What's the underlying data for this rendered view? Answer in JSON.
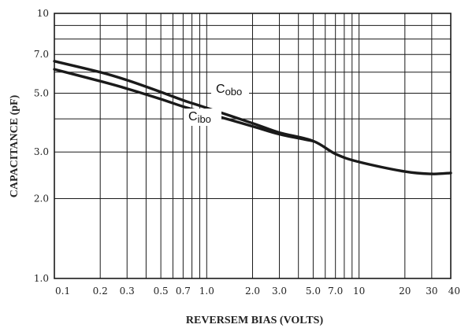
{
  "chart_data": {
    "type": "line",
    "title": "",
    "xlabel": "REVERSEM BIAS (VOLTS)",
    "ylabel": "CAPACITANCE (pF)",
    "xscale": "log",
    "yscale": "log",
    "xlim": [
      0.1,
      40
    ],
    "ylim": [
      1.0,
      10
    ],
    "grid": true,
    "x_tick_labels": [
      "0.1",
      "0.2",
      "0.3",
      "0.5",
      "0.7",
      "1.0",
      "2.0",
      "3.0",
      "5.0",
      "7.0",
      "10",
      "20",
      "30",
      "40"
    ],
    "x_ticks": [
      0.1,
      0.2,
      0.3,
      0.5,
      0.7,
      1.0,
      2.0,
      3.0,
      5.0,
      7.0,
      10,
      20,
      30,
      40
    ],
    "y_tick_labels": [
      "1.0",
      "2.0",
      "3.0",
      "5.0",
      "7.0",
      "10"
    ],
    "y_ticks": [
      1.0,
      2.0,
      3.0,
      5.0,
      7.0,
      10
    ],
    "series": [
      {
        "name": "Cobo",
        "label_base": "C",
        "label_sub": "obo",
        "x": [
          0.1,
          0.2,
          0.3,
          0.5,
          0.7,
          1.0,
          2.0,
          3.0,
          5.0,
          7.0,
          10,
          20,
          30,
          40
        ],
        "y": [
          6.6,
          6.0,
          5.6,
          5.05,
          4.7,
          4.4,
          3.85,
          3.55,
          3.3,
          2.95,
          2.75,
          2.53,
          2.48,
          2.5
        ]
      },
      {
        "name": "Cibo",
        "label_base": "C",
        "label_sub": "ibo",
        "x": [
          0.1,
          0.2,
          0.3,
          0.5,
          0.7,
          1.0,
          2.0,
          3.0,
          5.0
        ],
        "y": [
          6.15,
          5.55,
          5.2,
          4.75,
          4.45,
          4.2,
          3.75,
          3.5,
          3.3
        ]
      }
    ]
  }
}
